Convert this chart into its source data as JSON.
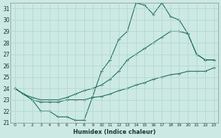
{
  "xlabel": "Humidex (Indice chaleur)",
  "ylabel": "",
  "background_color": "#cce9e4",
  "grid_color": "#b0d4ce",
  "line_color": "#1a6b5a",
  "xlim": [
    -0.5,
    23.5
  ],
  "ylim": [
    21,
    31.5
  ],
  "xticks": [
    0,
    1,
    2,
    3,
    4,
    5,
    6,
    7,
    8,
    9,
    10,
    11,
    12,
    13,
    14,
    15,
    16,
    17,
    18,
    19,
    20,
    21,
    22,
    23
  ],
  "yticks": [
    21,
    22,
    23,
    24,
    25,
    26,
    27,
    28,
    29,
    30,
    31
  ],
  "series": [
    [
      24.0,
      23.5,
      23.0,
      22.0,
      22.0,
      21.5,
      21.5,
      21.2,
      21.2,
      23.3,
      25.5,
      26.5,
      28.3,
      29.0,
      31.5,
      31.3,
      30.5,
      31.5,
      30.3,
      30.0,
      28.8,
      27.0,
      26.5,
      26.5
    ],
    [
      24.0,
      23.5,
      23.2,
      23.0,
      23.0,
      23.0,
      23.2,
      23.5,
      23.8,
      24.0,
      24.3,
      24.8,
      25.5,
      26.5,
      27.0,
      27.5,
      28.0,
      28.5,
      29.0,
      29.0,
      28.8,
      27.0,
      26.5,
      26.5
    ],
    [
      24.0,
      23.5,
      23.0,
      22.8,
      22.8,
      22.8,
      23.0,
      23.0,
      23.0,
      23.2,
      23.3,
      23.5,
      23.8,
      24.0,
      24.3,
      24.5,
      24.8,
      25.0,
      25.2,
      25.3,
      25.5,
      25.5,
      25.5,
      25.8
    ]
  ]
}
